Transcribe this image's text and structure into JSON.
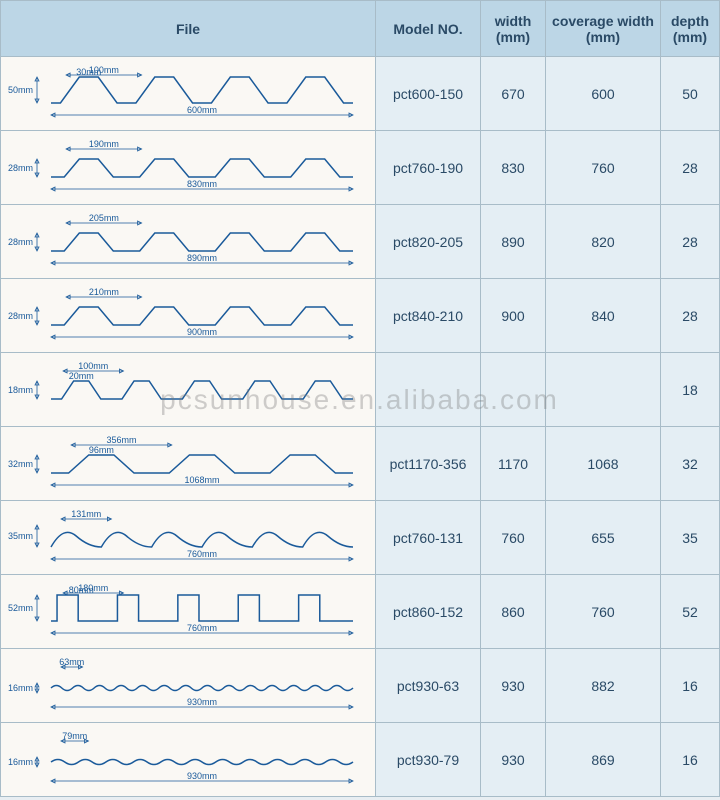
{
  "watermark": "pcsunhouse.en.alibaba.com",
  "headers": {
    "file": "File",
    "model": "Model NO.",
    "width": "width (mm)",
    "coverage": "coverage width (mm)",
    "depth": "depth (mm)"
  },
  "rows": [
    {
      "model": "pct600-150",
      "width": "670",
      "coverage": "600",
      "depth": "50",
      "profile": {
        "type": "trapezoid-sharp",
        "peaks": 4,
        "total_label": "600mm",
        "pitch_label": "100mm",
        "top_label": "30mm",
        "depth_label": "50mm"
      }
    },
    {
      "model": "pct760-190",
      "width": "830",
      "coverage": "760",
      "depth": "28",
      "profile": {
        "type": "trapezoid-low",
        "peaks": 4,
        "total_label": "830mm",
        "pitch_label": "190mm",
        "top_label": "",
        "depth_label": "28mm"
      }
    },
    {
      "model": "pct820-205",
      "width": "890",
      "coverage": "820",
      "depth": "28",
      "profile": {
        "type": "trapezoid-low",
        "peaks": 4,
        "total_label": "890mm",
        "pitch_label": "205mm",
        "top_label": "",
        "depth_label": "28mm"
      }
    },
    {
      "model": "pct840-210",
      "width": "900",
      "coverage": "840",
      "depth": "28",
      "profile": {
        "type": "trapezoid-low",
        "peaks": 4,
        "total_label": "900mm",
        "pitch_label": "210mm",
        "top_label": "",
        "depth_label": "28mm"
      }
    },
    {
      "model": "",
      "width": "",
      "coverage": "",
      "depth": "18",
      "profile": {
        "type": "trapezoid-low",
        "peaks": 5,
        "total_label": "",
        "pitch_label": "100mm",
        "top_label": "20mm",
        "depth_label": "18mm"
      }
    },
    {
      "model": "pct1170-356",
      "width": "1170",
      "coverage": "1068",
      "depth": "32",
      "profile": {
        "type": "trapezoid-low",
        "peaks": 3,
        "total_label": "1068mm",
        "pitch_label": "356mm",
        "top_label": "96mm",
        "depth_label": "32mm"
      }
    },
    {
      "model": "pct760-131",
      "width": "760",
      "coverage": "655",
      "depth": "35",
      "profile": {
        "type": "wave",
        "peaks": 6,
        "total_label": "760mm",
        "pitch_label": "131mm",
        "top_label": "",
        "depth_label": "35mm"
      }
    },
    {
      "model": "pct860-152",
      "width": "860",
      "coverage": "760",
      "depth": "52",
      "profile": {
        "type": "box",
        "peaks": 5,
        "total_label": "760mm",
        "pitch_label": "180mm",
        "top_label": "80mm",
        "depth_label": "52mm"
      }
    },
    {
      "model": "pct930-63",
      "width": "930",
      "coverage": "882",
      "depth": "16",
      "profile": {
        "type": "ripple",
        "peaks": 14,
        "total_label": "930mm",
        "pitch_label": "63mm",
        "top_label": "",
        "depth_label": "16mm"
      }
    },
    {
      "model": "pct930-79",
      "width": "930",
      "coverage": "869",
      "depth": "16",
      "profile": {
        "type": "ripple",
        "peaks": 11,
        "total_label": "930mm",
        "pitch_label": "79mm",
        "top_label": "",
        "depth_label": "16mm"
      }
    }
  ]
}
